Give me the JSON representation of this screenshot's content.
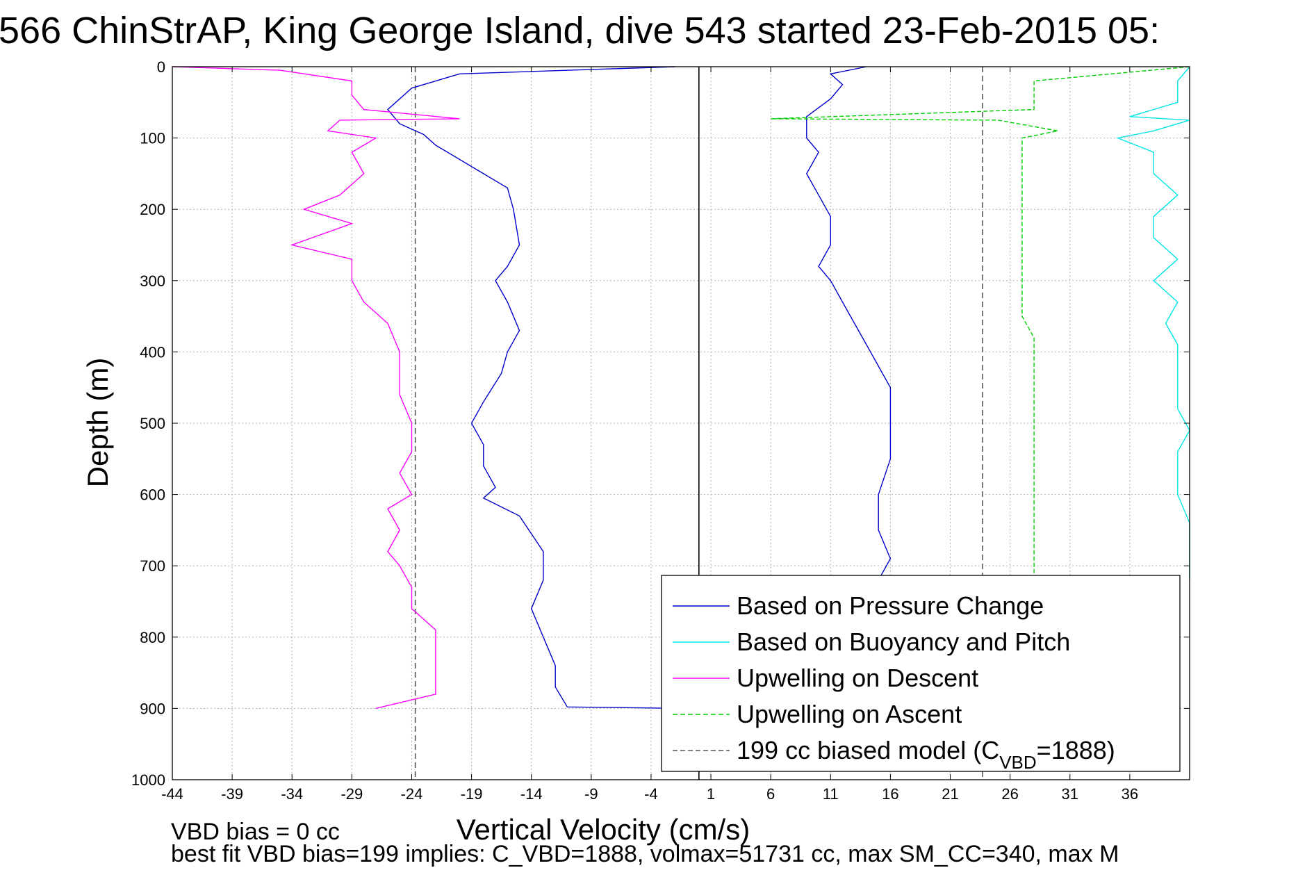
{
  "figure": {
    "title": "566 ChinStrAP, King George Island, dive 543 started 23-Feb-2015 05:",
    "notes": [
      "VBD bias = 0 cc",
      "best fit VBD bias=199 implies: C_VBD=1888, volmax=51731 cc, max SM_CC=340, max M"
    ]
  },
  "chart_data": {
    "type": "line",
    "xlabel": "Vertical Velocity (cm/s)",
    "ylabel": "Depth (m)",
    "xlim": [
      -44,
      41
    ],
    "ylim": [
      1000,
      0
    ],
    "y_inverted": true,
    "xticks": [
      -44,
      -39,
      -34,
      -29,
      -24,
      -19,
      -14,
      -9,
      -4,
      1,
      6,
      11,
      16,
      21,
      26,
      31,
      36
    ],
    "yticks": [
      0,
      100,
      200,
      300,
      400,
      500,
      600,
      700,
      800,
      900,
      1000
    ],
    "grid": true,
    "legend_position": "bottom-right",
    "reference_lines": [
      {
        "x": 0,
        "style": "solid",
        "color": "#000000"
      },
      {
        "x": -23.7,
        "style": "dashed",
        "color": "#555555"
      },
      {
        "x": 23.7,
        "style": "dashed",
        "color": "#555555"
      }
    ],
    "series": [
      {
        "name": "Based on Pressure Change",
        "color": "#0000cc",
        "style": "solid",
        "points": [
          [
            -2,
            0
          ],
          [
            -20,
            10
          ],
          [
            -24,
            30
          ],
          [
            -26,
            60
          ],
          [
            -25,
            80
          ],
          [
            -23,
            95
          ],
          [
            -22,
            110
          ],
          [
            -18,
            150
          ],
          [
            -16,
            170
          ],
          [
            -15.5,
            200
          ],
          [
            -15,
            250
          ],
          [
            -16,
            280
          ],
          [
            -17,
            300
          ],
          [
            -16,
            330
          ],
          [
            -15,
            370
          ],
          [
            -16,
            400
          ],
          [
            -16.5,
            430
          ],
          [
            -18,
            470
          ],
          [
            -19,
            500
          ],
          [
            -18,
            530
          ],
          [
            -18,
            560
          ],
          [
            -17,
            590
          ],
          [
            -18,
            605
          ],
          [
            -15,
            630
          ],
          [
            -13,
            680
          ],
          [
            -13,
            720
          ],
          [
            -14,
            760
          ],
          [
            -13,
            800
          ],
          [
            -12,
            840
          ],
          [
            -12,
            870
          ],
          [
            -11,
            898
          ],
          [
            -1,
            900
          ]
        ]
      },
      {
        "name": "Based on Pressure Change",
        "color": "#0000cc",
        "style": "solid",
        "points": [
          [
            14,
            0
          ],
          [
            11,
            10
          ],
          [
            12,
            25
          ],
          [
            11,
            45
          ],
          [
            9,
            70
          ],
          [
            9,
            100
          ],
          [
            10,
            120
          ],
          [
            9,
            150
          ],
          [
            10,
            180
          ],
          [
            11,
            210
          ],
          [
            11,
            250
          ],
          [
            10,
            280
          ],
          [
            11,
            300
          ],
          [
            12,
            330
          ],
          [
            13,
            360
          ],
          [
            14,
            390
          ],
          [
            15,
            420
          ],
          [
            16,
            450
          ],
          [
            16,
            500
          ],
          [
            16,
            550
          ],
          [
            15,
            600
          ],
          [
            15,
            650
          ],
          [
            16,
            690
          ],
          [
            15,
            720
          ]
        ]
      },
      {
        "name": "Based on Buoyancy and Pitch",
        "color": "#00e5e5",
        "style": "solid",
        "points": [
          [
            41,
            0
          ],
          [
            40,
            20
          ],
          [
            40,
            50
          ],
          [
            36,
            70
          ],
          [
            41,
            75
          ],
          [
            38,
            90
          ],
          [
            35,
            100
          ],
          [
            38,
            120
          ],
          [
            38,
            150
          ],
          [
            40,
            180
          ],
          [
            38,
            210
          ],
          [
            38,
            240
          ],
          [
            40,
            270
          ],
          [
            38,
            300
          ],
          [
            40,
            330
          ],
          [
            39,
            360
          ],
          [
            40,
            390
          ],
          [
            40,
            420
          ],
          [
            40,
            450
          ],
          [
            40,
            480
          ],
          [
            41,
            510
          ],
          [
            40,
            540
          ],
          [
            40,
            570
          ],
          [
            40,
            600
          ],
          [
            41,
            640
          ],
          [
            41,
            680
          ],
          [
            41,
            720
          ]
        ]
      },
      {
        "name": "Upwelling on Descent",
        "color": "#ff00ff",
        "style": "solid",
        "points": [
          [
            -44,
            0
          ],
          [
            -35,
            5
          ],
          [
            -29,
            20
          ],
          [
            -29,
            40
          ],
          [
            -28,
            60
          ],
          [
            -20,
            73
          ],
          [
            -30,
            75
          ],
          [
            -31,
            90
          ],
          [
            -27,
            100
          ],
          [
            -29,
            120
          ],
          [
            -28,
            150
          ],
          [
            -30,
            180
          ],
          [
            -33,
            200
          ],
          [
            -29,
            220
          ],
          [
            -34,
            250
          ],
          [
            -29,
            270
          ],
          [
            -29,
            300
          ],
          [
            -28,
            330
          ],
          [
            -26,
            360
          ],
          [
            -25,
            400
          ],
          [
            -25,
            430
          ],
          [
            -25,
            460
          ],
          [
            -24,
            500
          ],
          [
            -24,
            540
          ],
          [
            -25,
            570
          ],
          [
            -24,
            600
          ],
          [
            -26,
            620
          ],
          [
            -25,
            650
          ],
          [
            -26,
            680
          ],
          [
            -25,
            700
          ],
          [
            -24,
            730
          ],
          [
            -24,
            760
          ],
          [
            -22,
            790
          ],
          [
            -22,
            820
          ],
          [
            -22,
            850
          ],
          [
            -22,
            880
          ],
          [
            -27,
            900
          ]
        ]
      },
      {
        "name": "Upwelling on Ascent",
        "color": "#00cc00",
        "style": "dashed",
        "points": [
          [
            44,
            0
          ],
          [
            28,
            20
          ],
          [
            28,
            40
          ],
          [
            28,
            60
          ],
          [
            6,
            73
          ],
          [
            25,
            75
          ],
          [
            30,
            90
          ],
          [
            27,
            100
          ],
          [
            27,
            120
          ],
          [
            27,
            150
          ],
          [
            27,
            180
          ],
          [
            27,
            200
          ],
          [
            27,
            230
          ],
          [
            27,
            260
          ],
          [
            27,
            290
          ],
          [
            27,
            320
          ],
          [
            27,
            350
          ],
          [
            28,
            380
          ],
          [
            28,
            420
          ],
          [
            28,
            460
          ],
          [
            28,
            500
          ],
          [
            28,
            540
          ],
          [
            28,
            580
          ],
          [
            28,
            620
          ],
          [
            28,
            660
          ],
          [
            28,
            690
          ],
          [
            28,
            720
          ]
        ]
      }
    ],
    "legend": [
      {
        "label": "Based on Pressure Change",
        "color": "#0000cc",
        "style": "solid"
      },
      {
        "label": "Based on Buoyancy and Pitch",
        "color": "#00e5e5",
        "style": "solid"
      },
      {
        "label": "Upwelling on Descent",
        "color": "#ff00ff",
        "style": "solid"
      },
      {
        "label": "Upwelling on Ascent",
        "color": "#00cc00",
        "style": "dashed"
      },
      {
        "label": "199 cc biased model (C",
        "sub": "VBD",
        "suffix": "=1888)",
        "color": "#555555",
        "style": "dashed"
      }
    ]
  }
}
